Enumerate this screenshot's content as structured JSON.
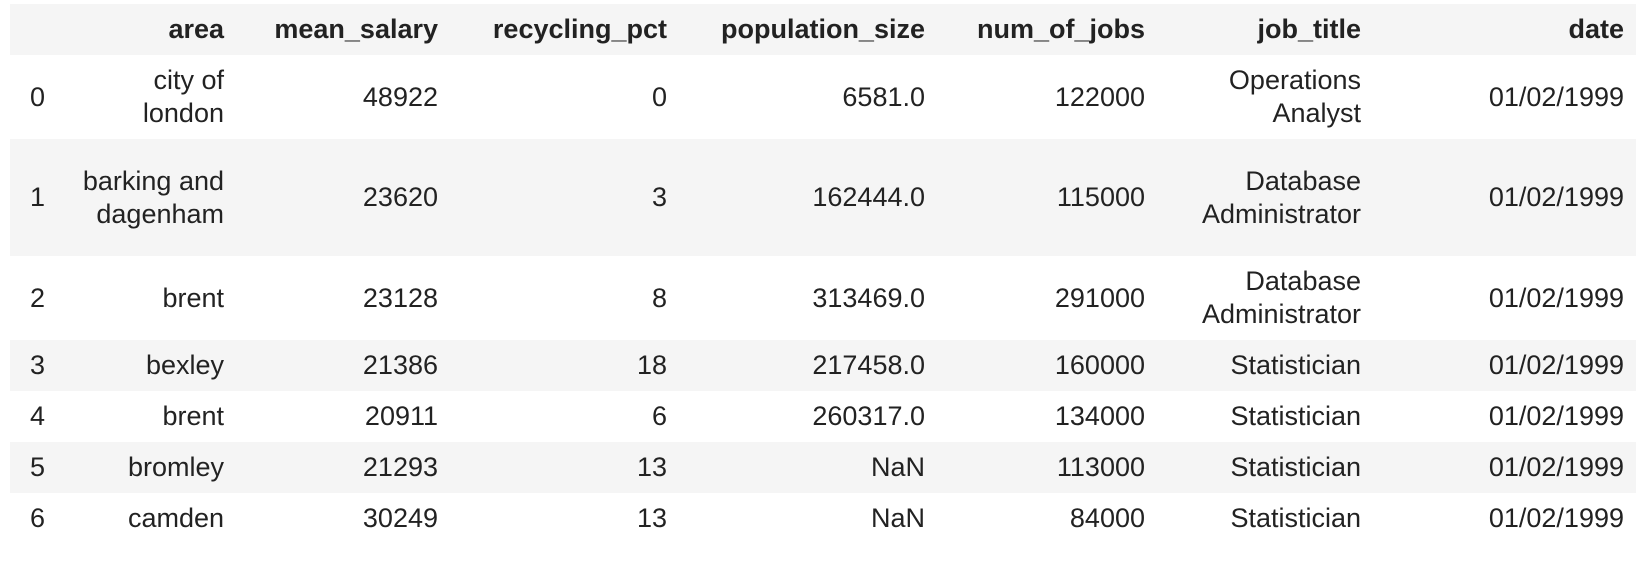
{
  "table": {
    "index_header": "",
    "columns": [
      "area",
      "mean_salary",
      "recycling_pct",
      "population_size",
      "num_of_jobs",
      "job_title",
      "date"
    ],
    "rows": [
      {
        "index": "0",
        "area": "city of london",
        "mean_salary": "48922",
        "recycling_pct": "0",
        "population_size": "6581.0",
        "num_of_jobs": "122000",
        "job_title": "Operations Analyst",
        "date": "01/02/1999"
      },
      {
        "index": "1",
        "area": "barking and dagenham",
        "mean_salary": "23620",
        "recycling_pct": "3",
        "population_size": "162444.0",
        "num_of_jobs": "115000",
        "job_title": "Database Administrator",
        "date": "01/02/1999"
      },
      {
        "index": "2",
        "area": "brent",
        "mean_salary": "23128",
        "recycling_pct": "8",
        "population_size": "313469.0",
        "num_of_jobs": "291000",
        "job_title": "Database Administrator",
        "date": "01/02/1999"
      },
      {
        "index": "3",
        "area": "bexley",
        "mean_salary": "21386",
        "recycling_pct": "18",
        "population_size": "217458.0",
        "num_of_jobs": "160000",
        "job_title": "Statistician",
        "date": "01/02/1999"
      },
      {
        "index": "4",
        "area": "brent",
        "mean_salary": "20911",
        "recycling_pct": "6",
        "population_size": "260317.0",
        "num_of_jobs": "134000",
        "job_title": "Statistician",
        "date": "01/02/1999"
      },
      {
        "index": "5",
        "area": "bromley",
        "mean_salary": "21293",
        "recycling_pct": "13",
        "population_size": "NaN",
        "num_of_jobs": "113000",
        "job_title": "Statistician",
        "date": "01/02/1999"
      },
      {
        "index": "6",
        "area": "camden",
        "mean_salary": "30249",
        "recycling_pct": "13",
        "population_size": "NaN",
        "num_of_jobs": "84000",
        "job_title": "Statistician",
        "date": "01/02/1999"
      }
    ]
  },
  "colors": {
    "header_bg": "#f5f5f5",
    "stripe_bg": "#f5f5f5",
    "text": "#222222"
  }
}
